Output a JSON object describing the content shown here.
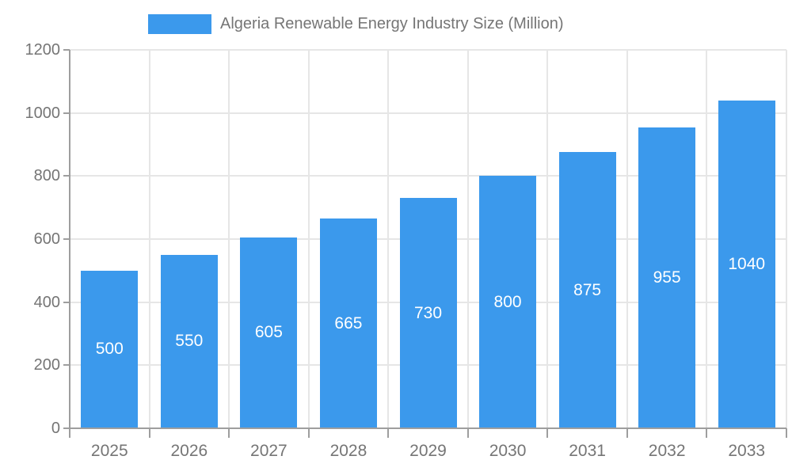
{
  "colors": {
    "bar": "#3B99EC",
    "axis_text": "#757575",
    "grid": "#E6E6E6",
    "axis_line": "#9E9E9E",
    "value_label": "#FFFFFF",
    "background": "#FFFFFF"
  },
  "chart_data": {
    "type": "bar",
    "title": "Algeria Renewable Energy Industry Size (Million)",
    "categories": [
      "2025",
      "2026",
      "2027",
      "2028",
      "2029",
      "2030",
      "2031",
      "2032",
      "2033"
    ],
    "values": [
      500,
      550,
      605,
      665,
      730,
      800,
      875,
      955,
      1040
    ],
    "xlabel": "",
    "ylabel": "",
    "ylim": [
      0,
      1200
    ],
    "yticks": [
      0,
      200,
      400,
      600,
      800,
      1000,
      1200
    ],
    "grid": true,
    "legend_position": "top",
    "value_labels": "inside-center",
    "value_label_color": "#FFFFFF"
  }
}
